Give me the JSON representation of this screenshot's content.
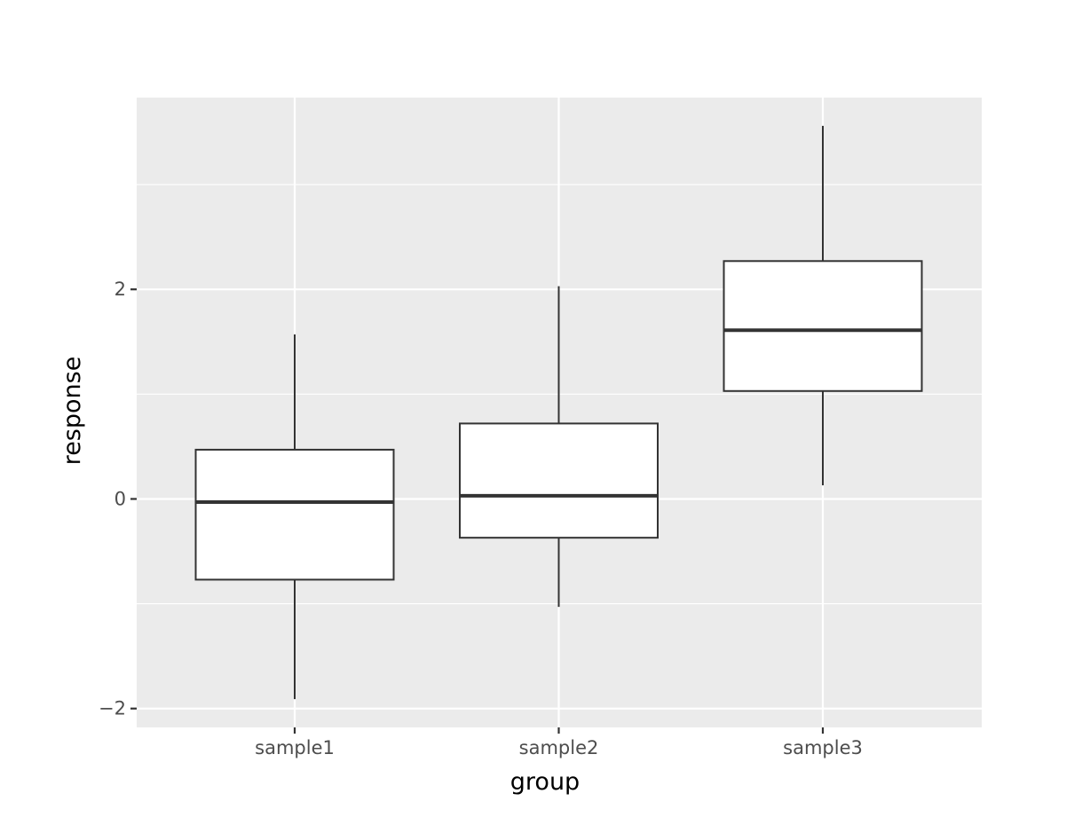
{
  "chart_data": {
    "type": "boxplot",
    "title": "",
    "xlabel": "group",
    "ylabel": "response",
    "categories": [
      "sample1",
      "sample2",
      "sample3"
    ],
    "boxes": [
      {
        "category": "sample1",
        "whisker_low": -1.91,
        "q1": -0.77,
        "median": -0.03,
        "q3": 0.47,
        "whisker_high": 1.57
      },
      {
        "category": "sample2",
        "whisker_low": -1.03,
        "q1": -0.37,
        "median": 0.03,
        "q3": 0.72,
        "whisker_high": 2.03
      },
      {
        "category": "sample3",
        "whisker_low": 0.13,
        "q1": 1.03,
        "median": 1.61,
        "q3": 2.27,
        "whisker_high": 3.56
      }
    ],
    "yticks": [
      -2,
      0,
      2
    ],
    "ytick_labels": [
      "−2",
      "0",
      "2"
    ],
    "ylim": [
      -2.18,
      3.83
    ],
    "grid": true,
    "legend": "none",
    "colors": {
      "panel_background": "#EBEBEB",
      "grid_major": "#FFFFFF",
      "grid_minor": "#FFFFFF",
      "box_fill": "#FFFFFF",
      "box_stroke": "#333333",
      "tick_color": "#333333"
    }
  }
}
